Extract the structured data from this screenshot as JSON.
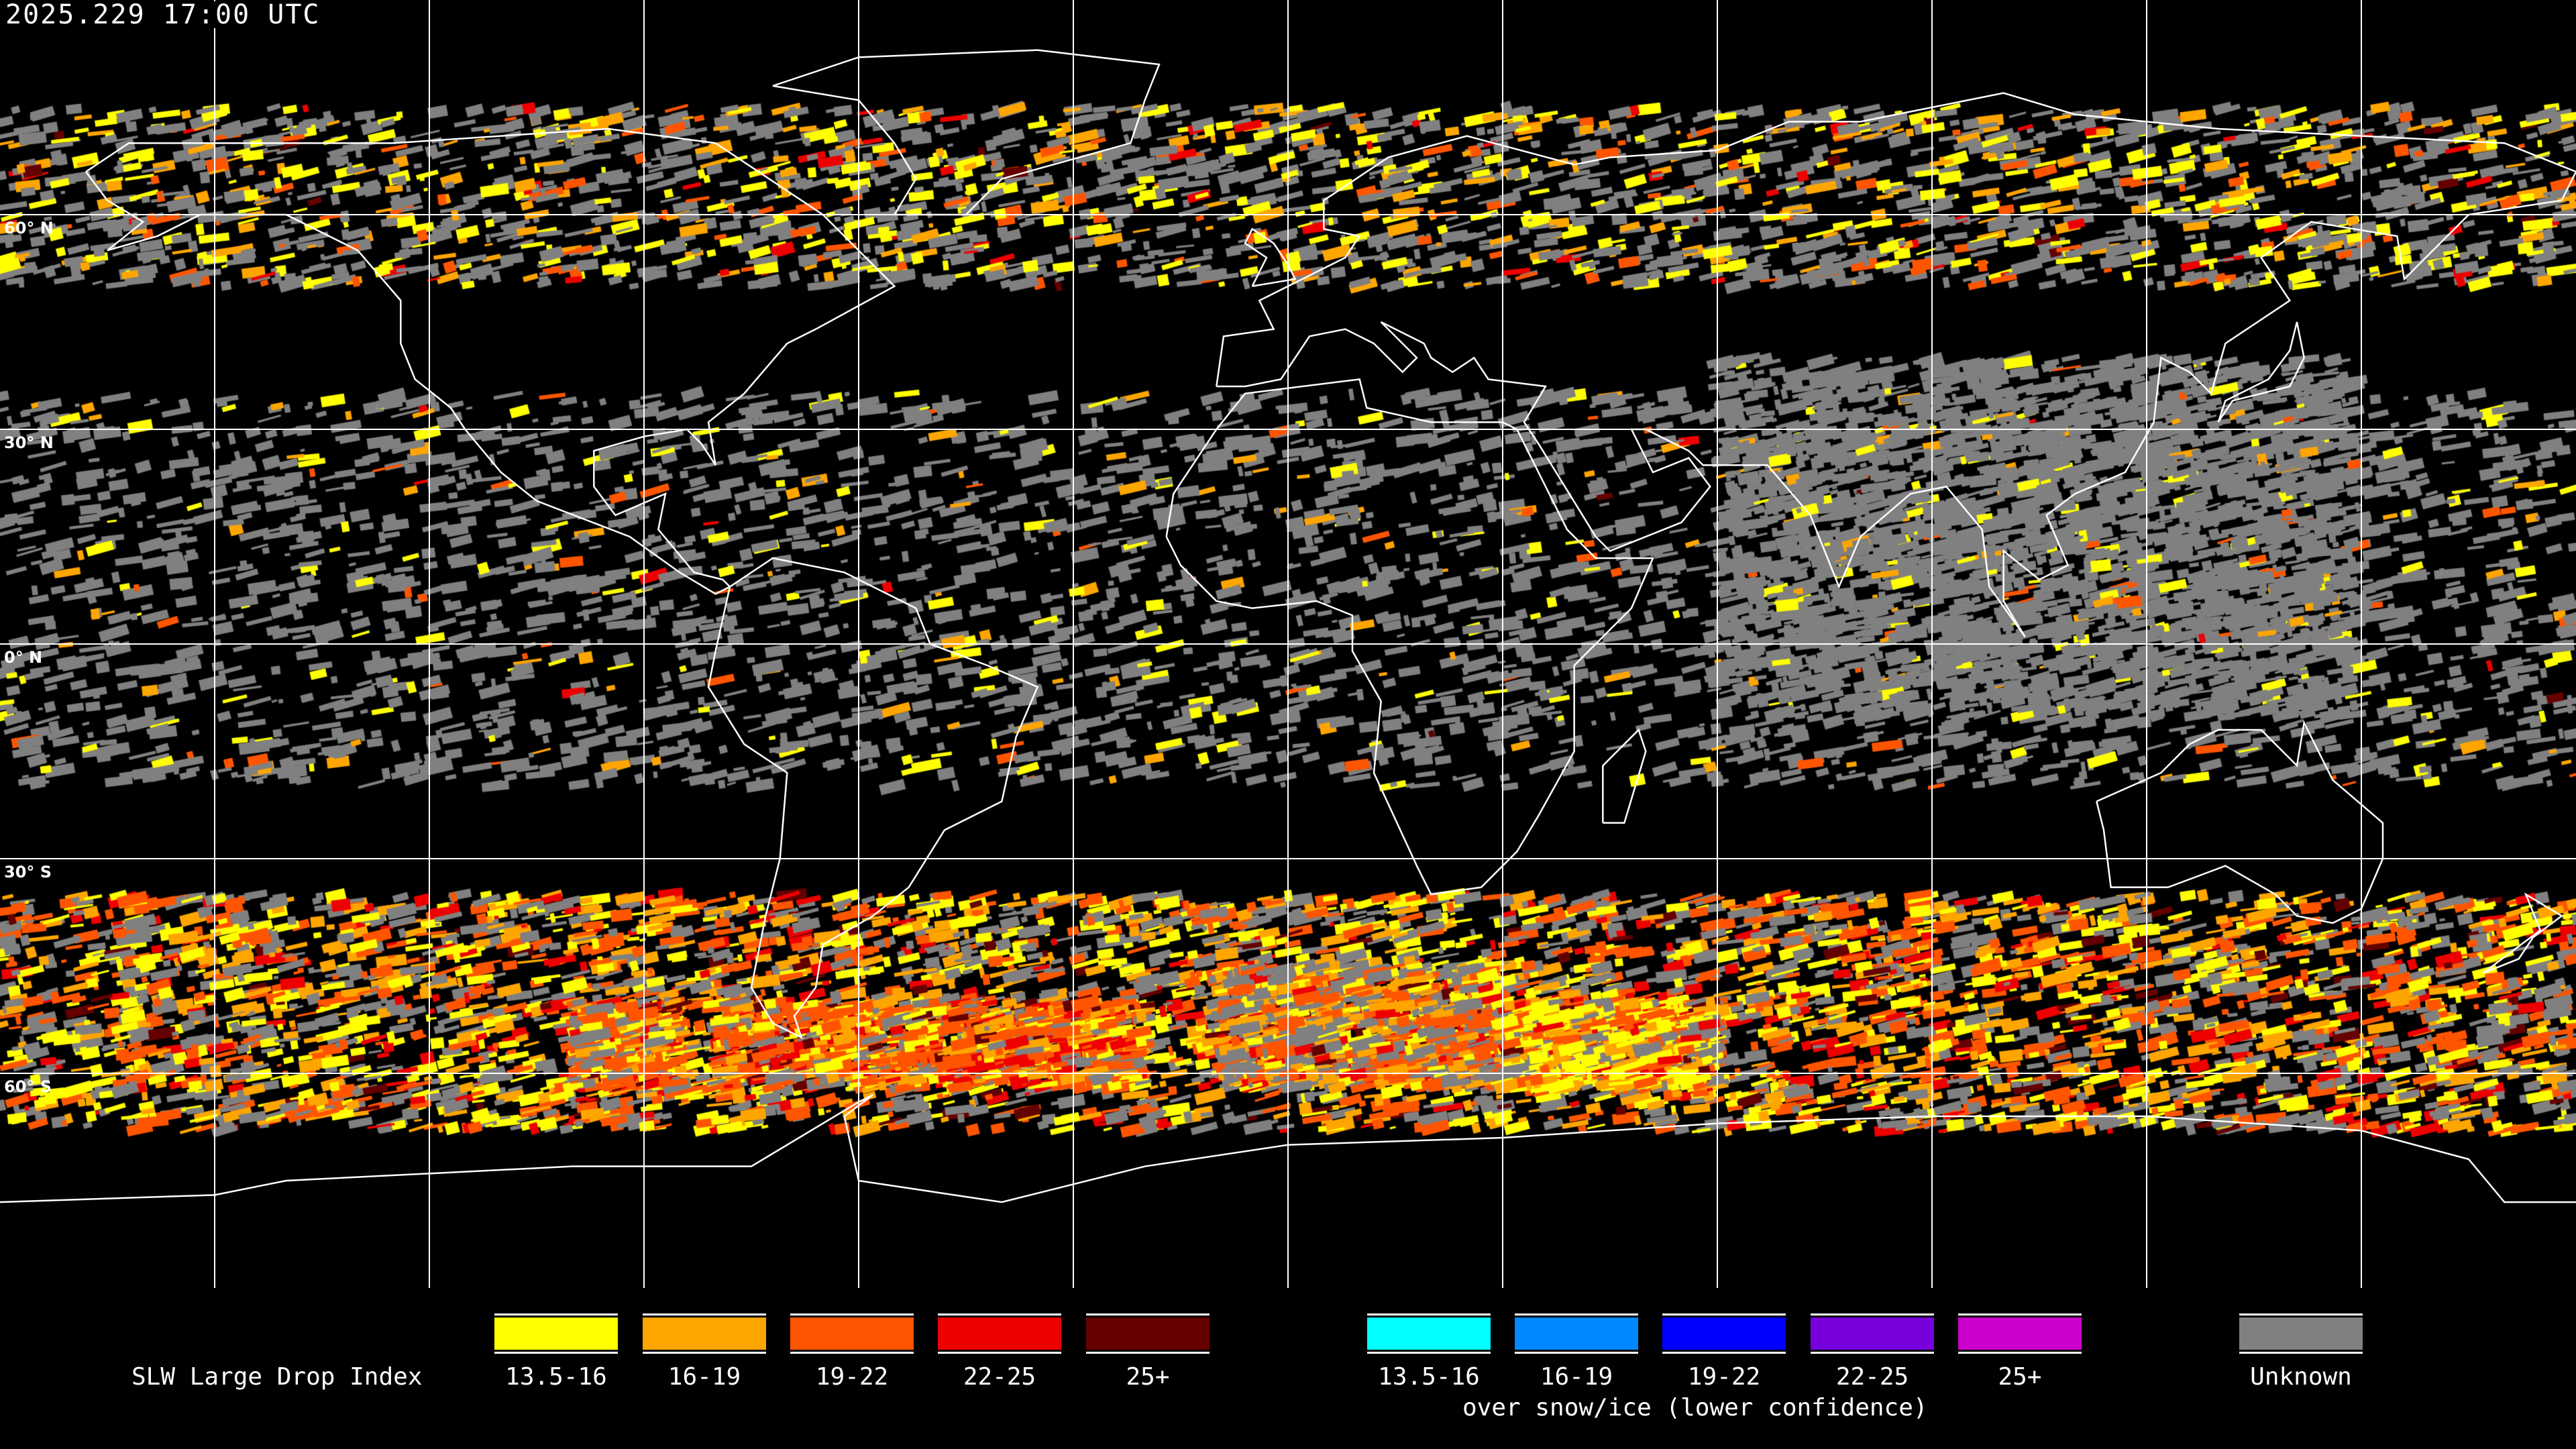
{
  "title": "2025.229 17:00 UTC",
  "lat_labels": [
    "60° N",
    "30° N",
    "0° N",
    "30° S",
    "60° S"
  ],
  "colors": {
    "background": "#000000",
    "grid": "#ffffff",
    "coastline": "#ffffff"
  },
  "legend": {
    "title": "SLW Large Drop Index",
    "liquid": [
      {
        "label": "13.5-16",
        "color": "#ffff00"
      },
      {
        "label": "16-19",
        "color": "#ffa500"
      },
      {
        "label": "19-22",
        "color": "#ff5500"
      },
      {
        "label": "22-25",
        "color": "#ee0000"
      },
      {
        "label": "25+",
        "color": "#640000"
      }
    ],
    "snow_ice": [
      {
        "label": "13.5-16",
        "color": "#00ffff"
      },
      {
        "label": "16-19",
        "color": "#0088ff"
      },
      {
        "label": "19-22",
        "color": "#0000ff"
      },
      {
        "label": "22-25",
        "color": "#7700dd"
      },
      {
        "label": "25+",
        "color": "#cc00cc"
      }
    ],
    "snow_ice_caption": "over snow/ice (lower confidence)",
    "unknown": {
      "label": "Unknown",
      "color": "#808080"
    }
  }
}
